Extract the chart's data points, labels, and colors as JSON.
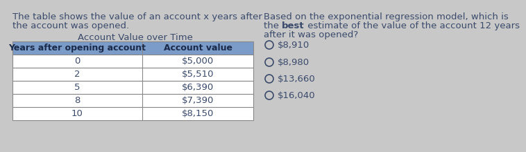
{
  "left_text_line1": "The table shows the value of an account x years after",
  "left_text_line2": "the account was opened.",
  "table_title": "Account Value over Time",
  "table_headers": [
    "Years after opening account",
    "Account value"
  ],
  "table_rows": [
    [
      "0",
      "$5,000"
    ],
    [
      "2",
      "$5,510"
    ],
    [
      "5",
      "$6,390"
    ],
    [
      "8",
      "$7,390"
    ],
    [
      "10",
      "$8,150"
    ]
  ],
  "right_text_line1": "Based on the exponential regression model, which is",
  "right_text_line2_pre": "the ",
  "right_text_line2_bold": "best",
  "right_text_line2_post": " estimate of the value of the account 12 years",
  "right_text_line3": "after it was opened?",
  "options": [
    "$8,910",
    "$8,980",
    "$13,660",
    "$16,040"
  ],
  "bg_color": "#c8c8c8",
  "table_header_bg": "#7b9bc8",
  "table_row_bg": "#ffffff",
  "table_alt_row_bg": "#f0f0f0",
  "border_color": "#888888",
  "text_color": "#3a4a6b",
  "font_size": 9.5,
  "table_header_text_color": "#1a2a4a"
}
